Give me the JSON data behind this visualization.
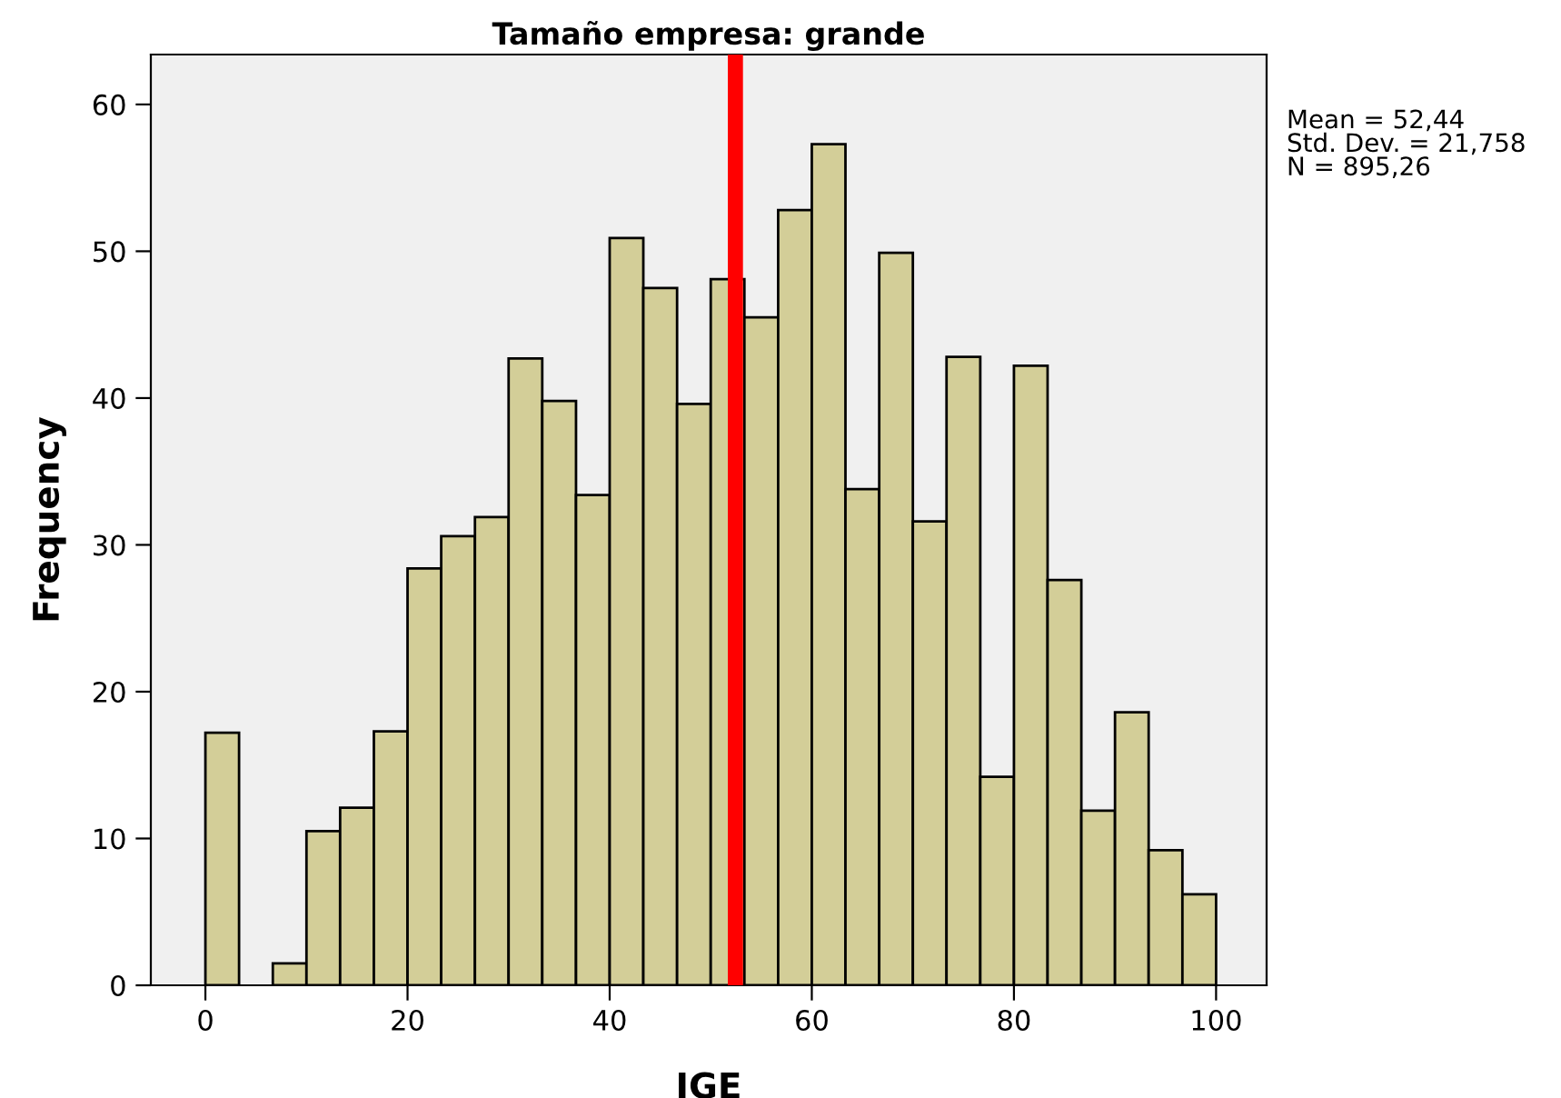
{
  "chart_data": {
    "type": "histogram",
    "title": "Tamaño empresa: grande",
    "xlabel": "IGE",
    "ylabel": "Frequency",
    "bins": [
      0,
      3.33,
      6.67,
      10,
      13.33,
      16.67,
      20,
      23.33,
      26.67,
      30,
      33.33,
      36.67,
      40,
      43.33,
      46.67,
      50,
      53.33,
      56.67,
      60,
      63.33,
      66.67,
      70,
      73.33,
      76.67,
      80,
      83.33,
      86.67,
      90,
      93.33,
      96.67,
      100
    ],
    "values": [
      17.2,
      0,
      1.5,
      10.5,
      12.1,
      17.3,
      28.4,
      30.6,
      31.9,
      42.7,
      39.8,
      33.4,
      50.9,
      47.5,
      39.6,
      48.1,
      45.5,
      52.8,
      57.3,
      33.8,
      49.9,
      31.6,
      42.8,
      14.2,
      42.2,
      27.6,
      11.9,
      18.6,
      9.2,
      6.2
    ],
    "color": "#d3ce98",
    "xlim": [
      -5.4,
      105
    ],
    "xticks": [
      0,
      20,
      40,
      60,
      80,
      100
    ],
    "ylim": [
      0,
      63.4
    ],
    "yticks": [
      0,
      10,
      20,
      30,
      40,
      50,
      60
    ],
    "ref_lines": [
      {
        "axis": "x",
        "value": 52.44,
        "color": "#ff0000"
      }
    ],
    "annotations": [
      "Mean = 52,44\nStd. Dev. = 21,758\nN = 895,26"
    ],
    "grid": false,
    "legend": false
  }
}
